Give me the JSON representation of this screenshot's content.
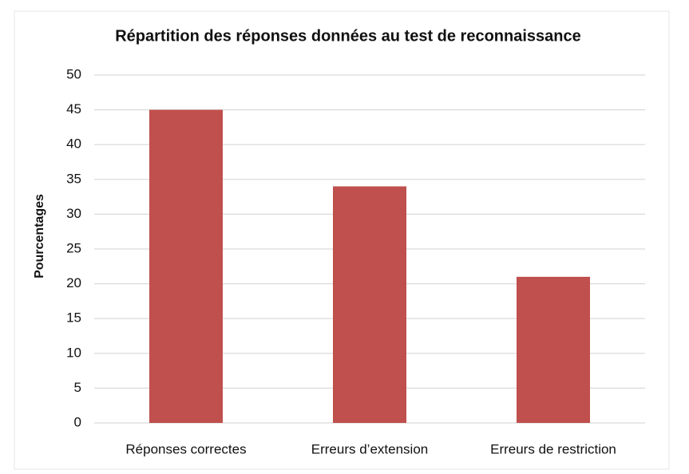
{
  "chart_data": {
    "type": "bar",
    "title": "Répartition des réponses données au test de reconnaissance",
    "ylabel": "Pourcentages",
    "categories": [
      "Réponses correctes",
      "Erreurs d’extension",
      "Erreurs de restriction"
    ],
    "values": [
      45,
      34,
      21
    ],
    "color": "#c0504d",
    "ylim": [
      0,
      50
    ],
    "yticks": [
      0,
      5,
      10,
      15,
      20,
      25,
      30,
      35,
      40,
      45,
      50
    ],
    "grid": true
  }
}
